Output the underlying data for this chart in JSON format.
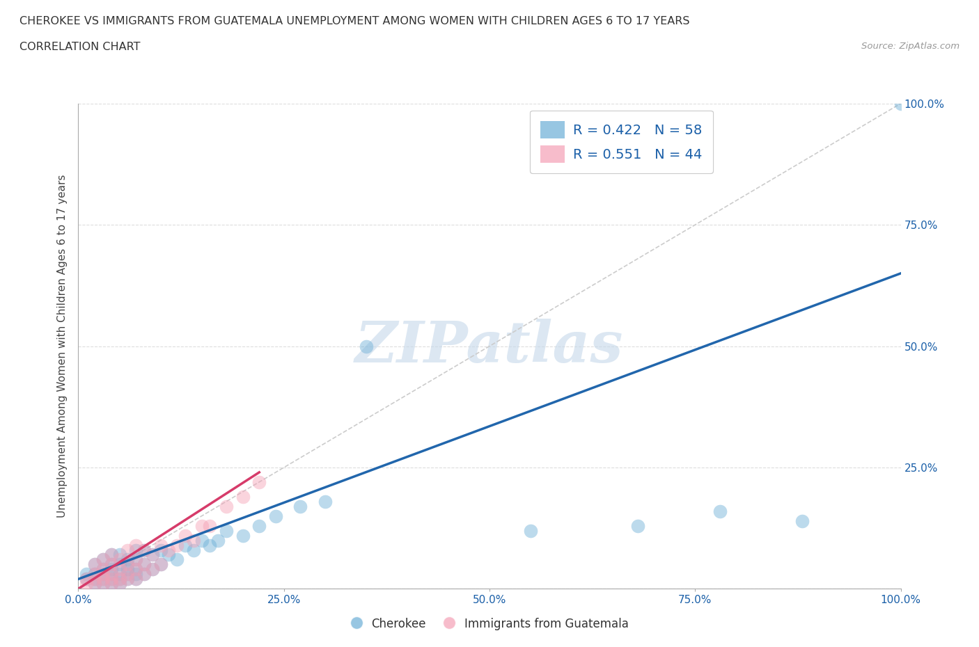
{
  "title_line1": "CHEROKEE VS IMMIGRANTS FROM GUATEMALA UNEMPLOYMENT AMONG WOMEN WITH CHILDREN AGES 6 TO 17 YEARS",
  "title_line2": "CORRELATION CHART",
  "source": "Source: ZipAtlas.com",
  "ylabel": "Unemployment Among Women with Children Ages 6 to 17 years",
  "xlim": [
    0,
    1.0
  ],
  "ylim": [
    0,
    1.0
  ],
  "xticks": [
    0.0,
    0.25,
    0.5,
    0.75,
    1.0
  ],
  "yticks": [
    0.0,
    0.25,
    0.5,
    0.75,
    1.0
  ],
  "xtick_labels": [
    "0.0%",
    "25.0%",
    "50.0%",
    "75.0%",
    "100.0%"
  ],
  "ytick_labels_left": [
    "",
    "",
    "",
    "",
    ""
  ],
  "ytick_labels_right": [
    "",
    "25.0%",
    "50.0%",
    "75.0%",
    "100.0%"
  ],
  "blue_color": "#6baed6",
  "pink_color": "#f4a0b5",
  "line_blue": "#2166ac",
  "line_pink": "#d63b6a",
  "diagonal_color": "#cccccc",
  "R_blue": 0.422,
  "N_blue": 58,
  "R_pink": 0.551,
  "N_pink": 44,
  "watermark": "ZIPatlas",
  "legend_text_color": "#1a5fa8",
  "blue_scatter_x": [
    0.01,
    0.01,
    0.02,
    0.02,
    0.02,
    0.02,
    0.03,
    0.03,
    0.03,
    0.03,
    0.03,
    0.04,
    0.04,
    0.04,
    0.04,
    0.04,
    0.04,
    0.05,
    0.05,
    0.05,
    0.05,
    0.05,
    0.06,
    0.06,
    0.06,
    0.06,
    0.06,
    0.07,
    0.07,
    0.07,
    0.07,
    0.07,
    0.08,
    0.08,
    0.08,
    0.09,
    0.09,
    0.1,
    0.1,
    0.11,
    0.12,
    0.13,
    0.14,
    0.15,
    0.16,
    0.17,
    0.18,
    0.2,
    0.22,
    0.24,
    0.27,
    0.3,
    0.35,
    0.55,
    0.68,
    0.78,
    0.88,
    1.0
  ],
  "blue_scatter_y": [
    0.02,
    0.03,
    0.01,
    0.02,
    0.03,
    0.05,
    0.01,
    0.02,
    0.03,
    0.04,
    0.06,
    0.01,
    0.02,
    0.03,
    0.04,
    0.05,
    0.07,
    0.01,
    0.02,
    0.03,
    0.05,
    0.07,
    0.02,
    0.03,
    0.04,
    0.05,
    0.06,
    0.02,
    0.03,
    0.04,
    0.06,
    0.08,
    0.03,
    0.05,
    0.08,
    0.04,
    0.07,
    0.05,
    0.08,
    0.07,
    0.06,
    0.09,
    0.08,
    0.1,
    0.09,
    0.1,
    0.12,
    0.11,
    0.13,
    0.15,
    0.17,
    0.18,
    0.5,
    0.12,
    0.13,
    0.16,
    0.14,
    1.0
  ],
  "pink_scatter_x": [
    0.01,
    0.01,
    0.02,
    0.02,
    0.02,
    0.02,
    0.03,
    0.03,
    0.03,
    0.03,
    0.03,
    0.04,
    0.04,
    0.04,
    0.04,
    0.04,
    0.05,
    0.05,
    0.05,
    0.05,
    0.06,
    0.06,
    0.06,
    0.06,
    0.07,
    0.07,
    0.07,
    0.07,
    0.08,
    0.08,
    0.08,
    0.09,
    0.09,
    0.1,
    0.1,
    0.11,
    0.12,
    0.13,
    0.14,
    0.15,
    0.16,
    0.18,
    0.2,
    0.22
  ],
  "pink_scatter_y": [
    0.01,
    0.02,
    0.01,
    0.02,
    0.03,
    0.05,
    0.01,
    0.02,
    0.03,
    0.04,
    0.06,
    0.01,
    0.02,
    0.03,
    0.05,
    0.07,
    0.01,
    0.02,
    0.04,
    0.06,
    0.02,
    0.03,
    0.05,
    0.08,
    0.02,
    0.04,
    0.06,
    0.09,
    0.03,
    0.05,
    0.08,
    0.04,
    0.07,
    0.05,
    0.09,
    0.08,
    0.09,
    0.11,
    0.1,
    0.13,
    0.13,
    0.17,
    0.19,
    0.22
  ],
  "blue_line_x0": 0.0,
  "blue_line_y0": 0.02,
  "blue_line_x1": 1.0,
  "blue_line_y1": 0.65,
  "pink_line_x0": 0.0,
  "pink_line_y0": 0.0,
  "pink_line_x1": 0.22,
  "pink_line_y1": 0.24
}
